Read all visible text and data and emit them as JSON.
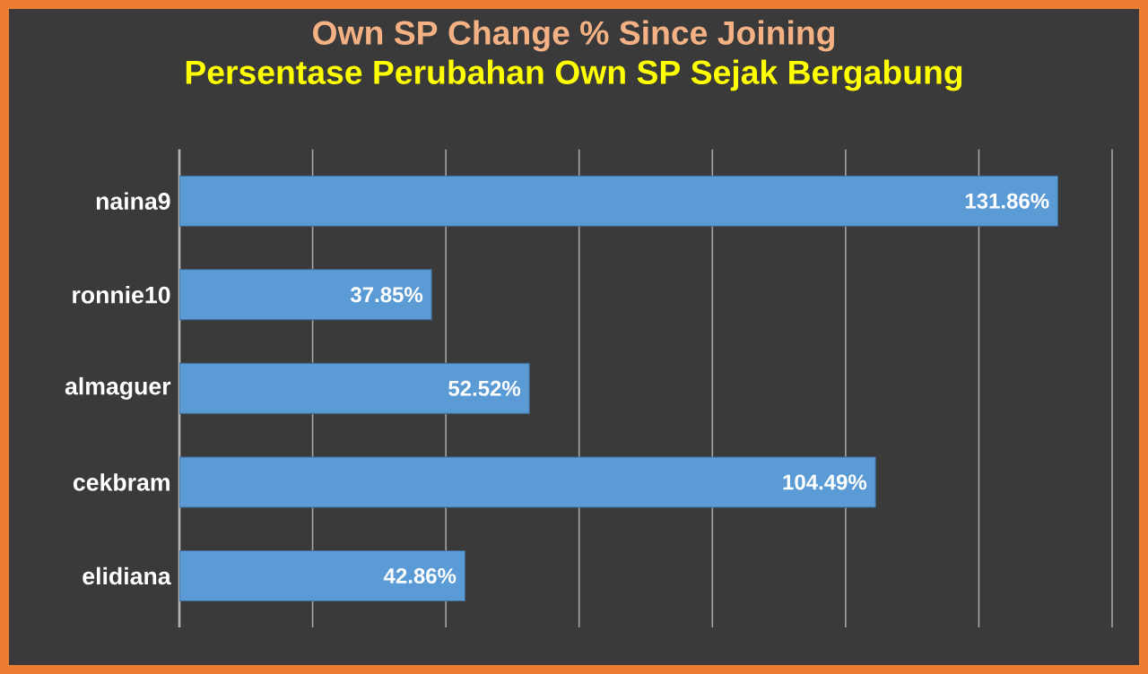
{
  "chart_data": {
    "type": "bar",
    "orientation": "horizontal",
    "title": "Own SP Change % Since Joining",
    "subtitle": "Persentase Perubahan Own SP Sejak Bergabung",
    "categories": [
      "naina9",
      "ronnie10",
      "almaguer",
      "cekbram",
      "elidiana"
    ],
    "values": [
      131.86,
      37.85,
      52.52,
      104.49,
      42.86
    ],
    "value_labels": [
      "131.86%",
      "37.85%",
      "52.52%",
      "104.49%",
      "42.86%"
    ],
    "color": "#5b9bd5",
    "xlim": [
      0,
      140
    ],
    "xticks": [
      {
        "value": 0,
        "label": null
      },
      {
        "value": 20,
        "label": null
      },
      {
        "value": 40,
        "label": null
      },
      {
        "value": 60,
        "label": null
      },
      {
        "value": 80,
        "label": null
      },
      {
        "value": 100,
        "label": null
      },
      {
        "value": 120,
        "label": null
      },
      {
        "value": 140,
        "label": null
      }
    ],
    "grid": "x",
    "tick_labels": "y",
    "legend": false
  }
}
